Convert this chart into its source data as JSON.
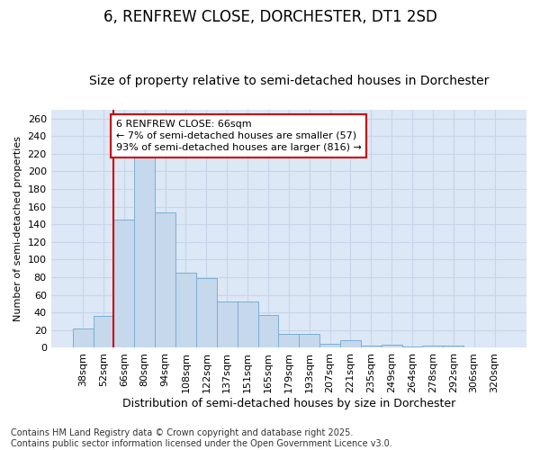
{
  "title": "6, RENFREW CLOSE, DORCHESTER, DT1 2SD",
  "subtitle": "Size of property relative to semi-detached houses in Dorchester",
  "xlabel": "Distribution of semi-detached houses by size in Dorchester",
  "ylabel": "Number of semi-detached properties",
  "categories": [
    "38sqm",
    "52sqm",
    "66sqm",
    "80sqm",
    "94sqm",
    "108sqm",
    "122sqm",
    "137sqm",
    "151sqm",
    "165sqm",
    "179sqm",
    "193sqm",
    "207sqm",
    "221sqm",
    "235sqm",
    "249sqm",
    "264sqm",
    "278sqm",
    "292sqm",
    "306sqm",
    "320sqm"
  ],
  "values": [
    22,
    36,
    145,
    217,
    153,
    85,
    79,
    52,
    52,
    37,
    16,
    16,
    5,
    9,
    3,
    4,
    1,
    3,
    2,
    0,
    0
  ],
  "bar_color": "#c5d8ec",
  "bar_edge_color": "#7aafd4",
  "highlight_index": 2,
  "annotation_text": "6 RENFREW CLOSE: 66sqm\n← 7% of semi-detached houses are smaller (57)\n93% of semi-detached houses are larger (816) →",
  "annotation_box_color": "#ffffff",
  "annotation_box_edge_color": "#cc0000",
  "vline_color": "#cc0000",
  "ylim": [
    0,
    270
  ],
  "yticks": [
    0,
    20,
    40,
    60,
    80,
    100,
    120,
    140,
    160,
    180,
    200,
    220,
    240,
    260
  ],
  "grid_color": "#c8d4e8",
  "bg_color": "#dce8f5",
  "fig_bg_color": "#ffffff",
  "footer": "Contains HM Land Registry data © Crown copyright and database right 2025.\nContains public sector information licensed under the Open Government Licence v3.0.",
  "title_fontsize": 12,
  "subtitle_fontsize": 10,
  "xlabel_fontsize": 9,
  "ylabel_fontsize": 8,
  "tick_fontsize": 8,
  "annotation_fontsize": 8,
  "footer_fontsize": 7
}
